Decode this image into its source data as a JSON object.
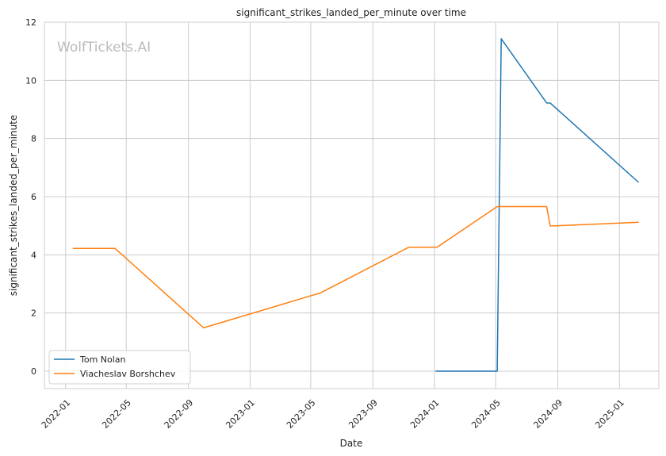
{
  "chart_data": {
    "type": "line",
    "title": "significant_strikes_landed_per_minute over time",
    "xlabel": "Date",
    "ylabel": "significant_strikes_landed_per_minute",
    "watermark": "WolfTickets.AI",
    "xlim": [
      "2021-11-20",
      "2025-03-20"
    ],
    "ylim": [
      -0.6,
      12
    ],
    "x_ticks": [
      "2022-01",
      "2022-05",
      "2022-09",
      "2023-01",
      "2023-05",
      "2023-09",
      "2024-01",
      "2024-05",
      "2024-09",
      "2025-01"
    ],
    "y_ticks": [
      0,
      2,
      4,
      6,
      8,
      10,
      12
    ],
    "grid": true,
    "legend_position": "lower-left",
    "series": [
      {
        "name": "Tom Nolan",
        "color": "#1f77b4",
        "points": [
          {
            "x": "2024-01-03",
            "y": 0.0
          },
          {
            "x": "2024-05-04",
            "y": 0.0
          },
          {
            "x": "2024-05-12",
            "y": 11.43
          },
          {
            "x": "2024-08-10",
            "y": 9.22
          },
          {
            "x": "2024-08-17",
            "y": 9.22
          },
          {
            "x": "2025-02-08",
            "y": 6.49
          }
        ]
      },
      {
        "name": "Viacheslav Borshchev",
        "color": "#ff7f0e",
        "points": [
          {
            "x": "2022-01-15",
            "y": 4.22
          },
          {
            "x": "2022-04-09",
            "y": 4.22
          },
          {
            "x": "2022-10-01",
            "y": 1.49
          },
          {
            "x": "2023-05-20",
            "y": 2.69
          },
          {
            "x": "2023-11-11",
            "y": 4.26
          },
          {
            "x": "2024-01-06",
            "y": 4.26
          },
          {
            "x": "2024-05-04",
            "y": 5.66
          },
          {
            "x": "2024-08-10",
            "y": 5.66
          },
          {
            "x": "2024-08-17",
            "y": 4.99
          },
          {
            "x": "2025-02-08",
            "y": 5.12
          }
        ]
      }
    ]
  }
}
